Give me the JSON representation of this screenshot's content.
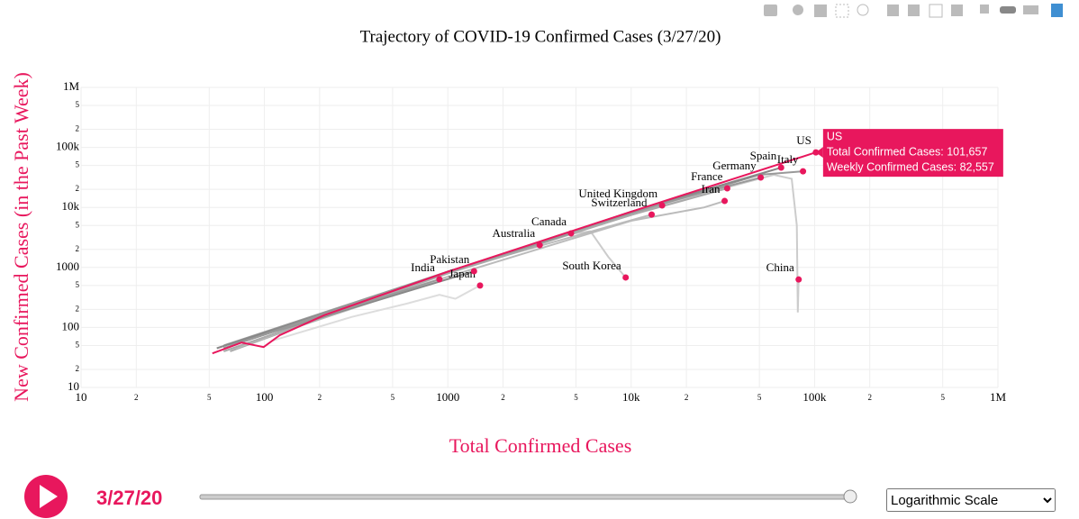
{
  "chart_data": {
    "type": "line",
    "title": "Trajectory of COVID-19 Confirmed Cases (3/27/20)",
    "x_label": "Total Confirmed Cases",
    "y_label": "New Confirmed Cases (in the Past Week)",
    "xscale": "log",
    "yscale": "log",
    "grid": true,
    "xlim": [
      10,
      1000000
    ],
    "ylim": [
      10,
      1000000
    ],
    "xticks": [
      10,
      {
        "value": 20,
        "label": "2"
      },
      {
        "value": 50,
        "label": "5"
      },
      100,
      {
        "value": 200,
        "label": "2"
      },
      {
        "value": 500,
        "label": "5"
      },
      1000,
      {
        "value": 2000,
        "label": "2"
      },
      {
        "value": 5000,
        "label": "5"
      },
      {
        "value": 10000,
        "label": "10k"
      },
      {
        "value": 20000,
        "label": "2"
      },
      {
        "value": 50000,
        "label": "5"
      },
      {
        "value": 100000,
        "label": "100k"
      },
      {
        "value": 200000,
        "label": "2"
      },
      {
        "value": 500000,
        "label": "5"
      },
      {
        "value": 1000000,
        "label": "1M"
      }
    ],
    "yticks": [
      10,
      {
        "value": 20,
        "label": "2"
      },
      {
        "value": 50,
        "label": "5"
      },
      100,
      {
        "value": 200,
        "label": "2"
      },
      {
        "value": 500,
        "label": "5"
      },
      1000,
      {
        "value": 2000,
        "label": "2"
      },
      {
        "value": 5000,
        "label": "5"
      },
      {
        "value": 10000,
        "label": "10k"
      },
      {
        "value": 20000,
        "label": "2"
      },
      {
        "value": 50000,
        "label": "5"
      },
      {
        "value": 100000,
        "label": "100k"
      },
      {
        "value": 200000,
        "label": "2"
      },
      {
        "value": 500000,
        "label": "5"
      },
      {
        "value": 1000000,
        "label": "1M"
      }
    ],
    "marker_color": "#e8175d",
    "series": [
      {
        "name": "China",
        "color": "#cccccc",
        "x": [
          548,
          1000,
          10000,
          60000,
          75000,
          80000,
          81000,
          81897
        ],
        "y": [
          400,
          800,
          8000,
          35000,
          30000,
          5000,
          178,
          630
        ]
      },
      {
        "name": "South Korea",
        "color": "#cccccc",
        "x": [
          60,
          500,
          4000,
          6000,
          7500,
          9332
        ],
        "y": [
          45,
          400,
          3400,
          4000,
          1500,
          680
        ]
      },
      {
        "name": "Japan",
        "color": "#dddddd",
        "x": [
          110,
          300,
          600,
          900,
          1100,
          1499
        ],
        "y": [
          60,
          150,
          250,
          350,
          300,
          500
        ]
      },
      {
        "name": "Iran",
        "color": "#bbbbbb",
        "x": [
          60,
          1000,
          10000,
          25000,
          32332
        ],
        "y": [
          40,
          700,
          6000,
          10000,
          12800
        ]
      },
      {
        "name": "Italy",
        "color": "#999999",
        "x": [
          60,
          1000,
          10000,
          50000,
          86498
        ],
        "y": [
          50,
          850,
          8000,
          35000,
          40000
        ]
      },
      {
        "name": "Spain",
        "color": "#888888",
        "x": [
          55,
          1000,
          10000,
          65719
        ],
        "y": [
          45,
          800,
          8500,
          46100
        ]
      },
      {
        "name": "Germany",
        "color": "#999999",
        "x": [
          60,
          1000,
          10000,
          50871
        ],
        "y": [
          45,
          800,
          8500,
          31500
        ]
      },
      {
        "name": "France",
        "color": "#aaaaaa",
        "x": [
          60,
          1000,
          10000,
          33402
        ],
        "y": [
          45,
          800,
          7500,
          20800
        ]
      },
      {
        "name": "United Kingdom",
        "color": "#aaaaaa",
        "x": [
          65,
          1000,
          14745
        ],
        "y": [
          40,
          850,
          10800
        ]
      },
      {
        "name": "Switzerland",
        "color": "#bbbbbb",
        "x": [
          70,
          1000,
          12928
        ],
        "y": [
          45,
          850,
          7600
        ]
      },
      {
        "name": "Canada",
        "color": "#999999",
        "x": [
          60,
          1000,
          4700
        ],
        "y": [
          45,
          850,
          3700
        ]
      },
      {
        "name": "Australia",
        "color": "#aaaaaa",
        "x": [
          60,
          1000,
          3170
        ],
        "y": [
          40,
          800,
          2350
        ]
      },
      {
        "name": "Pakistan",
        "color": "#888888",
        "x": [
          70,
          1390
        ],
        "y": [
          55,
          865
        ]
      },
      {
        "name": "India",
        "color": "#999999",
        "x": [
          65,
          900
        ],
        "y": [
          50,
          635
        ]
      },
      {
        "name": "US",
        "color": "#e8175d",
        "x": [
          52,
          75,
          99,
          121,
          212,
          1000,
          10000,
          101657
        ],
        "y": [
          37,
          56,
          47,
          74,
          160,
          850,
          8500,
          82557
        ]
      }
    ],
    "hover": {
      "title": "US",
      "lines": [
        "Total Confirmed Cases: 101,657",
        "Weekly Confirmed Cases: 82,557"
      ]
    }
  },
  "controls": {
    "date": "3/27/20",
    "scale_option": "Logarithmic Scale"
  }
}
